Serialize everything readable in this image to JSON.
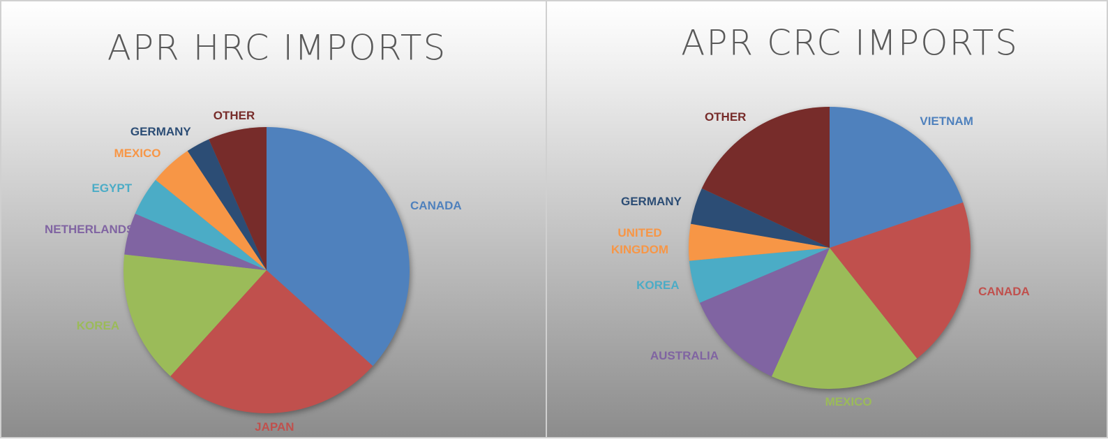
{
  "chart_data": [
    {
      "type": "pie",
      "title": "APR HRC IMPORTS",
      "categories": [
        "CANADA",
        "JAPAN",
        "KOREA",
        "NETHERLANDS",
        "EGYPT",
        "MEXICO",
        "GERMANY",
        "OTHER"
      ],
      "values": [
        36.6,
        25,
        15,
        4.7,
        4.4,
        4.8,
        2.7,
        6.6
      ],
      "colors": [
        "#4f81bd",
        "#c0504d",
        "#9bbb59",
        "#8064a2",
        "#4bacc6",
        "#f79646",
        "#2c4d75",
        "#772c2a"
      ]
    },
    {
      "type": "pie",
      "title": "APR CRC IMPORTS",
      "categories": [
        "VIETNAM",
        "CANADA",
        "MEXICO",
        "AUSTRALIA",
        "KOREA",
        "UNITED KINGDOM",
        "GERMANY",
        "OTHER"
      ],
      "values": [
        19.8,
        19.6,
        17.4,
        11.9,
        4.9,
        4.2,
        4.2,
        18.1
      ],
      "colors": [
        "#4f81bd",
        "#c0504d",
        "#9bbb59",
        "#8064a2",
        "#4bacc6",
        "#f79646",
        "#2c4d75",
        "#772c2a"
      ]
    }
  ]
}
